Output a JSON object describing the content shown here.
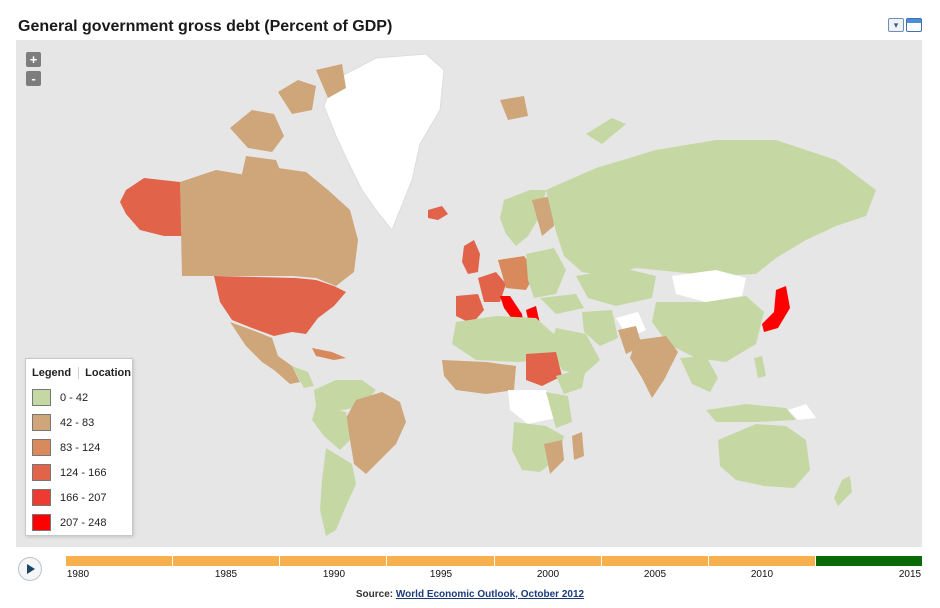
{
  "title": "General government gross debt (Percent of GDP)",
  "toolbar": {
    "menu_icon": "dropdown-icon",
    "window_icon": "window-icon"
  },
  "zoom": {
    "in_label": "+",
    "out_label": "-"
  },
  "legend": {
    "tab_legend": "Legend",
    "tab_location": "Location",
    "items": [
      {
        "label": "0 - 42",
        "color": "#c5d8a4"
      },
      {
        "label": "42 - 83",
        "color": "#cfa57a"
      },
      {
        "label": "83 - 124",
        "color": "#d98a5c"
      },
      {
        "label": "124 - 166",
        "color": "#e0634a"
      },
      {
        "label": "166 - 207",
        "color": "#ee3b32"
      },
      {
        "label": "207 - 248",
        "color": "#ff0000"
      }
    ]
  },
  "timeline": {
    "labels": [
      "1980",
      "1985",
      "1990",
      "1995",
      "2000",
      "2005",
      "2010",
      "2015"
    ],
    "active_year": "2015"
  },
  "source": {
    "prefix": "Source:",
    "link": "World Economic Outlook, October 2012"
  }
}
